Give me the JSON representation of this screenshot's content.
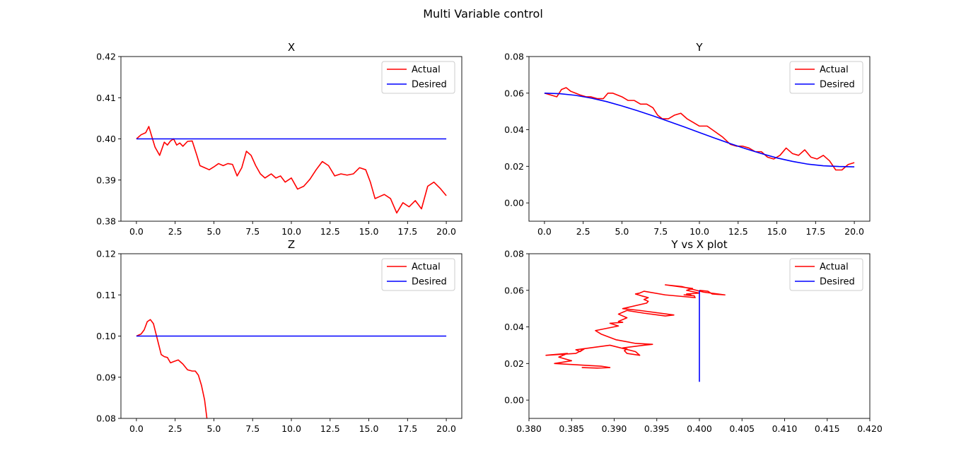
{
  "figure": {
    "title": "Multi Variable control"
  },
  "chart_data": [
    {
      "type": "line",
      "title": "X",
      "xlim": [
        -1,
        21
      ],
      "ylim": [
        0.38,
        0.42
      ],
      "xticks": [
        0.0,
        2.5,
        5.0,
        7.5,
        10.0,
        12.5,
        15.0,
        17.5,
        20.0
      ],
      "xtick_labels": [
        "0.0",
        "2.5",
        "5.0",
        "7.5",
        "10.0",
        "12.5",
        "15.0",
        "17.5",
        "20.0"
      ],
      "yticks": [
        0.38,
        0.39,
        0.4,
        0.41,
        0.42
      ],
      "ytick_labels": [
        "0.38",
        "0.39",
        "0.40",
        "0.41",
        "0.42"
      ],
      "legend_position": "upper right",
      "series": [
        {
          "name": "Actual",
          "color": "#ff0000",
          "x": [
            0,
            0.3,
            0.6,
            0.8,
            1.0,
            1.2,
            1.5,
            1.8,
            2.0,
            2.2,
            2.4,
            2.6,
            2.8,
            3.0,
            3.3,
            3.6,
            3.9,
            4.1,
            4.4,
            4.7,
            5.0,
            5.3,
            5.6,
            5.9,
            6.2,
            6.5,
            6.8,
            7.1,
            7.4,
            7.7,
            8.0,
            8.3,
            8.7,
            9.0,
            9.3,
            9.6,
            10.0,
            10.4,
            10.8,
            11.2,
            11.6,
            12.0,
            12.4,
            12.8,
            13.2,
            13.6,
            14.0,
            14.4,
            14.8,
            15.1,
            15.4,
            15.7,
            16.0,
            16.4,
            16.8,
            17.2,
            17.6,
            18.0,
            18.4,
            18.8,
            19.2,
            19.6,
            20.0
          ],
          "y": [
            0.4,
            0.401,
            0.4015,
            0.403,
            0.4005,
            0.398,
            0.396,
            0.3992,
            0.3985,
            0.3995,
            0.4,
            0.3985,
            0.399,
            0.3982,
            0.3994,
            0.3995,
            0.396,
            0.3935,
            0.393,
            0.3925,
            0.3932,
            0.394,
            0.3935,
            0.394,
            0.3938,
            0.391,
            0.393,
            0.397,
            0.396,
            0.3935,
            0.3915,
            0.3905,
            0.3915,
            0.3905,
            0.391,
            0.3895,
            0.3905,
            0.3878,
            0.3885,
            0.3902,
            0.3925,
            0.3945,
            0.3935,
            0.391,
            0.3915,
            0.3912,
            0.3915,
            0.393,
            0.3925,
            0.3895,
            0.3855,
            0.386,
            0.3865,
            0.3855,
            0.382,
            0.3845,
            0.3835,
            0.385,
            0.383,
            0.3885,
            0.3895,
            0.388,
            0.3862
          ]
        },
        {
          "name": "Desired",
          "color": "#0000ff",
          "x": [
            0,
            20
          ],
          "y": [
            0.4,
            0.4
          ]
        }
      ]
    },
    {
      "type": "line",
      "title": "Y",
      "xlim": [
        -1,
        21
      ],
      "ylim": [
        -0.01,
        0.08
      ],
      "xticks": [
        0.0,
        2.5,
        5.0,
        7.5,
        10.0,
        12.5,
        15.0,
        17.5,
        20.0
      ],
      "xtick_labels": [
        "0.0",
        "2.5",
        "5.0",
        "7.5",
        "10.0",
        "12.5",
        "15.0",
        "17.5",
        "20.0"
      ],
      "yticks": [
        0.0,
        0.02,
        0.04,
        0.06,
        0.08
      ],
      "ytick_labels": [
        "0.00",
        "0.02",
        "0.04",
        "0.06",
        "0.08"
      ],
      "legend_position": "upper right",
      "series": [
        {
          "name": "Actual",
          "color": "#ff0000",
          "x": [
            0,
            0.4,
            0.8,
            1.1,
            1.4,
            1.7,
            2.0,
            2.3,
            2.7,
            3.0,
            3.4,
            3.8,
            4.1,
            4.4,
            4.7,
            5.0,
            5.4,
            5.8,
            6.2,
            6.6,
            7.0,
            7.3,
            7.6,
            8.0,
            8.4,
            8.8,
            9.2,
            9.6,
            10.0,
            10.5,
            11.0,
            11.5,
            12.0,
            12.4,
            12.8,
            13.2,
            13.6,
            14.0,
            14.4,
            14.8,
            15.2,
            15.6,
            16.0,
            16.4,
            16.8,
            17.2,
            17.6,
            18.0,
            18.4,
            18.8,
            19.2,
            19.6,
            20.0
          ],
          "y": [
            0.06,
            0.059,
            0.058,
            0.062,
            0.063,
            0.061,
            0.06,
            0.059,
            0.058,
            0.058,
            0.057,
            0.057,
            0.06,
            0.06,
            0.059,
            0.058,
            0.056,
            0.056,
            0.054,
            0.054,
            0.052,
            0.048,
            0.046,
            0.046,
            0.048,
            0.049,
            0.046,
            0.044,
            0.042,
            0.042,
            0.039,
            0.036,
            0.032,
            0.031,
            0.031,
            0.03,
            0.028,
            0.028,
            0.025,
            0.024,
            0.026,
            0.03,
            0.027,
            0.026,
            0.029,
            0.025,
            0.024,
            0.026,
            0.023,
            0.018,
            0.018,
            0.021,
            0.022
          ]
        },
        {
          "name": "Desired",
          "color": "#0000ff",
          "x": [
            0,
            1,
            2,
            3,
            4,
            5,
            6,
            7,
            8,
            9,
            10,
            11,
            12,
            13,
            14,
            15,
            16,
            17,
            18,
            19,
            20
          ],
          "y": [
            0.06,
            0.0597,
            0.0588,
            0.0573,
            0.0554,
            0.053,
            0.0504,
            0.0476,
            0.0446,
            0.0416,
            0.0385,
            0.0354,
            0.0324,
            0.0296,
            0.027,
            0.0246,
            0.0227,
            0.0212,
            0.0203,
            0.0199,
            0.0197
          ]
        }
      ]
    },
    {
      "type": "line",
      "title": "Z",
      "xlim": [
        -1,
        21
      ],
      "ylim": [
        0.08,
        0.12
      ],
      "xticks": [
        0.0,
        2.5,
        5.0,
        7.5,
        10.0,
        12.5,
        15.0,
        17.5,
        20.0
      ],
      "xtick_labels": [
        "0.0",
        "2.5",
        "5.0",
        "7.5",
        "10.0",
        "12.5",
        "15.0",
        "17.5",
        "20.0"
      ],
      "yticks": [
        0.08,
        0.09,
        0.1,
        0.11,
        0.12
      ],
      "ytick_labels": [
        "0.08",
        "0.09",
        "0.10",
        "0.11",
        "0.12"
      ],
      "legend_position": "upper right",
      "series": [
        {
          "name": "Actual",
          "color": "#ff0000",
          "x": [
            0,
            0.3,
            0.5,
            0.7,
            0.9,
            1.1,
            1.3,
            1.6,
            1.8,
            2.0,
            2.2,
            2.4,
            2.7,
            3.0,
            3.3,
            3.6,
            3.8,
            4.0,
            4.2,
            4.4,
            4.55
          ],
          "y": [
            0.1,
            0.1005,
            0.1015,
            0.1035,
            0.104,
            0.103,
            0.1,
            0.0955,
            0.095,
            0.0948,
            0.0935,
            0.0938,
            0.0942,
            0.0932,
            0.0918,
            0.0915,
            0.0915,
            0.0905,
            0.088,
            0.0845,
            0.08
          ]
        },
        {
          "name": "Desired",
          "color": "#0000ff",
          "x": [
            0,
            20
          ],
          "y": [
            0.1,
            0.1
          ]
        }
      ]
    },
    {
      "type": "line",
      "title": "Y vs X plot",
      "xlim": [
        0.38,
        0.42
      ],
      "ylim": [
        -0.01,
        0.08
      ],
      "xticks": [
        0.38,
        0.385,
        0.39,
        0.395,
        0.4,
        0.405,
        0.41,
        0.415,
        0.42
      ],
      "xtick_labels": [
        "0.380",
        "0.385",
        "0.390",
        "0.395",
        "0.400",
        "0.405",
        "0.410",
        "0.415",
        "0.420"
      ],
      "yticks": [
        0.0,
        0.02,
        0.04,
        0.06,
        0.08
      ],
      "ytick_labels": [
        "0.00",
        "0.02",
        "0.04",
        "0.06",
        "0.08"
      ],
      "legend_position": "upper right",
      "series": [
        {
          "name": "Actual",
          "color": "#ff0000",
          "x": [
            0.4,
            0.401,
            0.4015,
            0.403,
            0.4005,
            0.398,
            0.396,
            0.3992,
            0.3985,
            0.3995,
            0.4,
            0.3985,
            0.399,
            0.3982,
            0.3994,
            0.3995,
            0.396,
            0.3935,
            0.393,
            0.3925,
            0.3932,
            0.394,
            0.3935,
            0.394,
            0.3938,
            0.391,
            0.393,
            0.397,
            0.396,
            0.3935,
            0.3915,
            0.3905,
            0.3915,
            0.3905,
            0.391,
            0.3895,
            0.3905,
            0.3878,
            0.3885,
            0.3902,
            0.3925,
            0.3945,
            0.3935,
            0.391,
            0.3915,
            0.3912,
            0.3915,
            0.393,
            0.3925,
            0.3895,
            0.3855,
            0.386,
            0.3865,
            0.3855,
            0.382,
            0.3845,
            0.3835,
            0.385,
            0.383,
            0.3885,
            0.3895,
            0.388,
            0.3862
          ],
          "y": [
            0.06,
            0.0595,
            0.058,
            0.0575,
            0.059,
            0.062,
            0.063,
            0.061,
            0.06,
            0.059,
            0.0585,
            0.058,
            0.0575,
            0.0575,
            0.057,
            0.056,
            0.0575,
            0.0595,
            0.0585,
            0.058,
            0.057,
            0.056,
            0.055,
            0.054,
            0.053,
            0.05,
            0.049,
            0.0465,
            0.046,
            0.0475,
            0.049,
            0.047,
            0.045,
            0.043,
            0.0425,
            0.042,
            0.0405,
            0.038,
            0.036,
            0.033,
            0.031,
            0.0305,
            0.03,
            0.0285,
            0.028,
            0.027,
            0.0255,
            0.0245,
            0.0265,
            0.03,
            0.0275,
            0.0265,
            0.028,
            0.0255,
            0.0245,
            0.0255,
            0.0235,
            0.0215,
            0.02,
            0.0185,
            0.0178,
            0.0175,
            0.0178
          ]
        },
        {
          "name": "Desired",
          "color": "#0000ff",
          "x": [
            0.4,
            0.4,
            0.4,
            0.4,
            0.4,
            0.4,
            0.4,
            0.4,
            0.4,
            0.4,
            0.4
          ],
          "y": [
            0.06,
            0.055,
            0.05,
            0.045,
            0.04,
            0.035,
            0.03,
            0.025,
            0.02,
            0.015,
            0.01
          ]
        }
      ]
    }
  ]
}
